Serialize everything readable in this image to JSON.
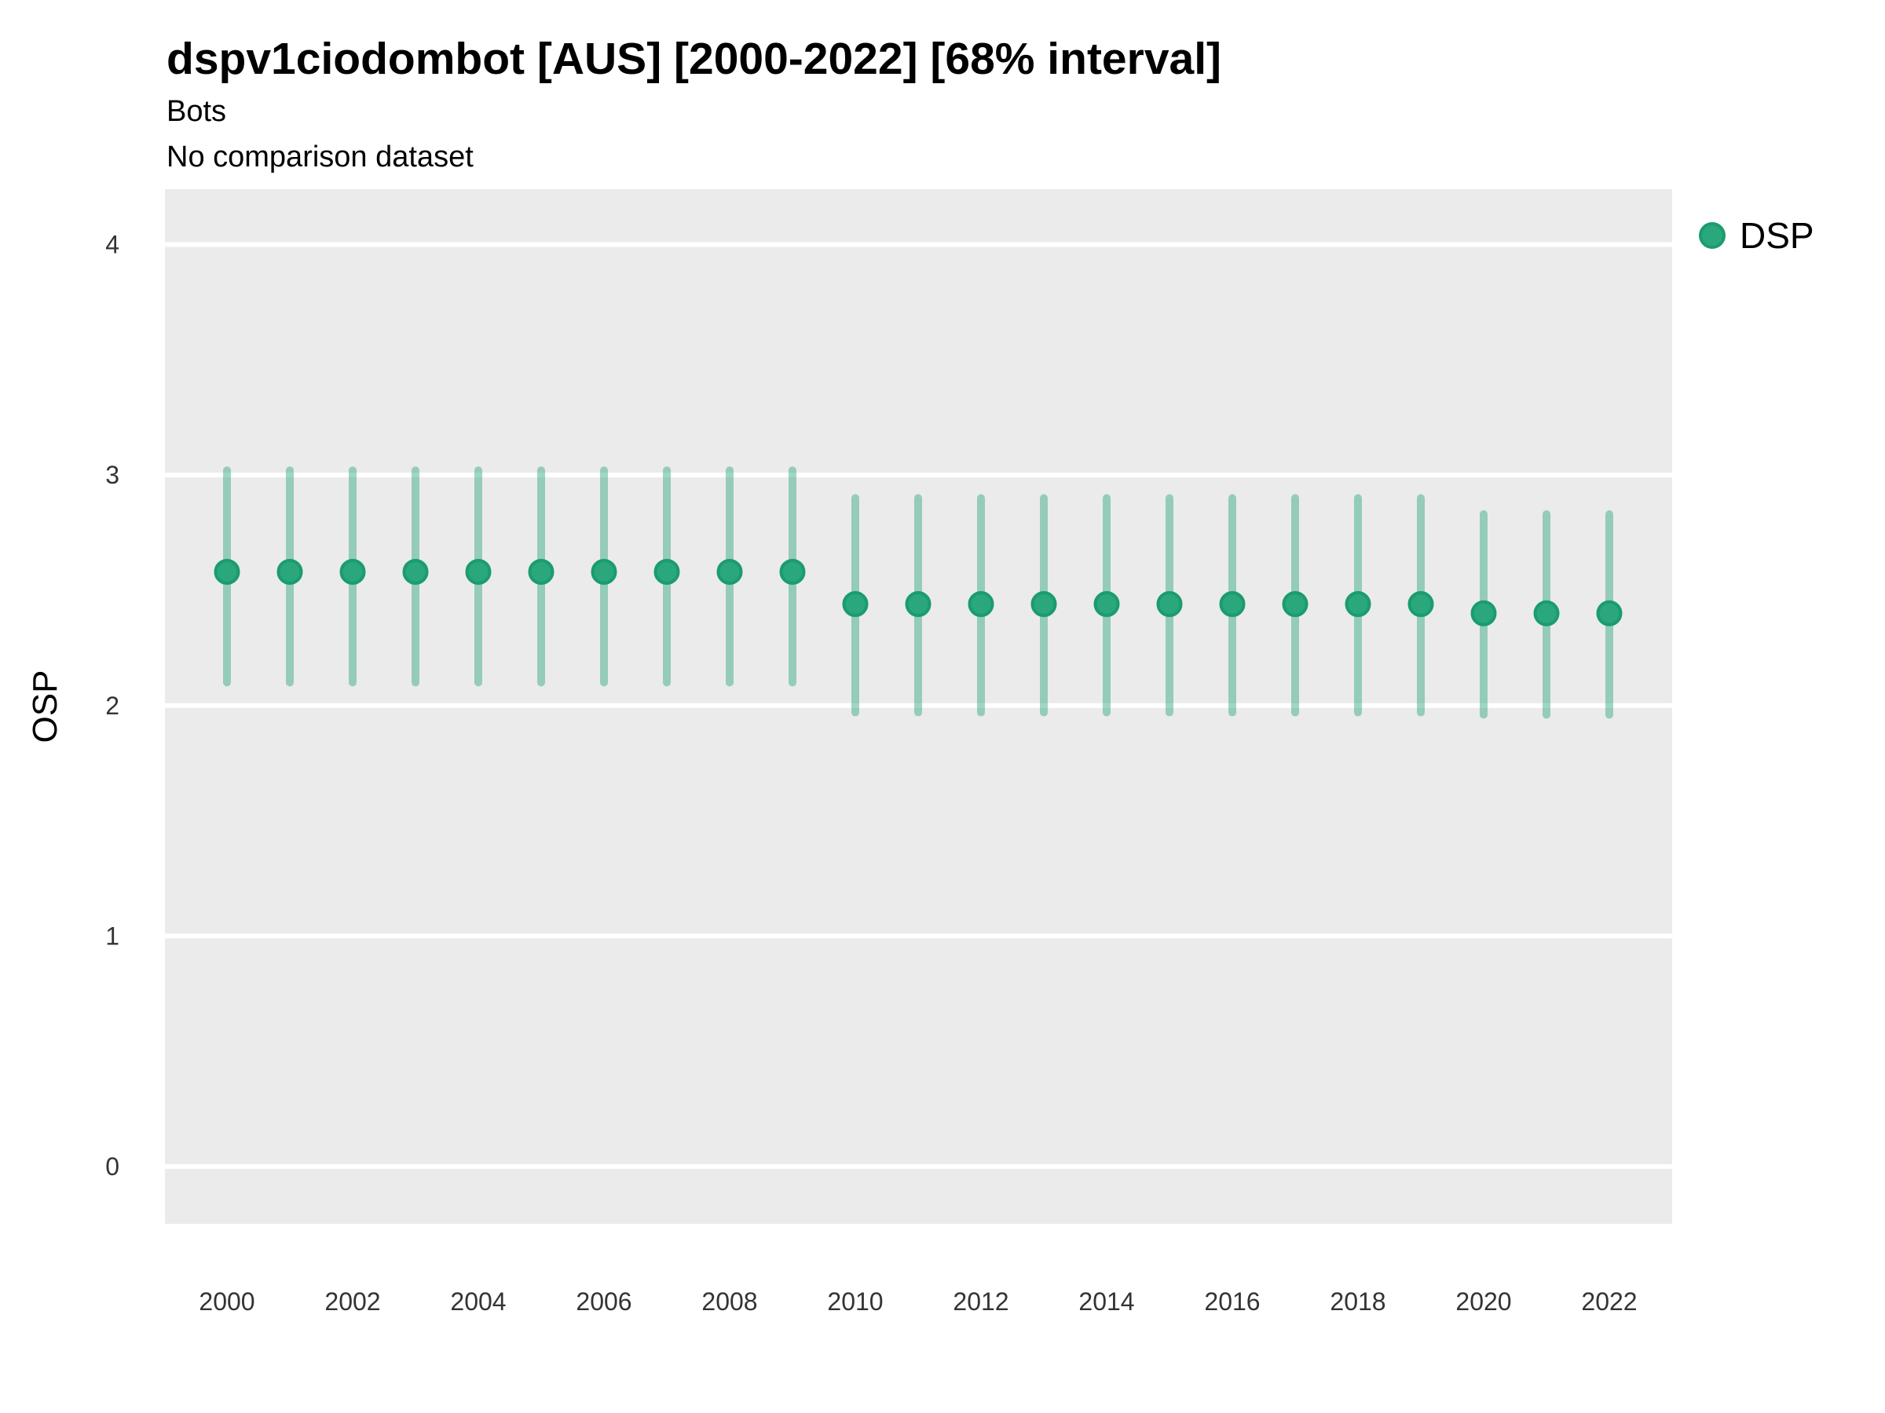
{
  "title": "dspv1ciodombot [AUS] [2000-2022] [68% interval]",
  "subtitle": "Bots",
  "comparison_note": "No comparison dataset",
  "legend": {
    "label": "DSP",
    "position": "right"
  },
  "colors": {
    "point_fill": "#2aa77d",
    "point_stroke": "#1b9c6c",
    "interval_line": "rgba(42,167,125,0.45)",
    "panel_bg": "#ebebeb",
    "gridline": "#ffffff",
    "tick_text": "#333333",
    "text": "#000000"
  },
  "chart_data": {
    "type": "scatter",
    "subtype": "pointrange",
    "title": "dspv1ciodombot [AUS] [2000-2022] [68% interval]",
    "subtitle": "Bots",
    "note": "No comparison dataset",
    "xlabel": "",
    "ylabel": "OSP",
    "interval_level": "68%",
    "grid": "major horizontal white lines on gray panel",
    "legend_position": "right",
    "x": [
      2000,
      2001,
      2002,
      2003,
      2004,
      2005,
      2006,
      2007,
      2008,
      2009,
      2010,
      2011,
      2012,
      2013,
      2014,
      2015,
      2016,
      2017,
      2018,
      2019,
      2020,
      2021,
      2022
    ],
    "series": [
      {
        "name": "DSP",
        "values": [
          2.58,
          2.58,
          2.58,
          2.58,
          2.58,
          2.58,
          2.58,
          2.58,
          2.58,
          2.58,
          2.44,
          2.44,
          2.44,
          2.44,
          2.44,
          2.44,
          2.44,
          2.44,
          2.44,
          2.44,
          2.4,
          2.4,
          2.4
        ],
        "interval_low": [
          2.1,
          2.1,
          2.1,
          2.1,
          2.1,
          2.1,
          2.1,
          2.1,
          2.1,
          2.1,
          1.97,
          1.97,
          1.97,
          1.97,
          1.97,
          1.97,
          1.97,
          1.97,
          1.97,
          1.97,
          1.96,
          1.96,
          1.96
        ],
        "interval_high": [
          3.02,
          3.02,
          3.02,
          3.02,
          3.02,
          3.02,
          3.02,
          3.02,
          3.02,
          3.02,
          2.9,
          2.9,
          2.9,
          2.9,
          2.9,
          2.9,
          2.9,
          2.9,
          2.9,
          2.9,
          2.83,
          2.83,
          2.83
        ]
      }
    ],
    "x_ticks": [
      2000,
      2002,
      2004,
      2006,
      2008,
      2010,
      2012,
      2014,
      2016,
      2018,
      2020,
      2022
    ],
    "y_ticks": [
      0,
      1,
      2,
      3,
      4
    ],
    "ylim": [
      -0.25,
      4.24
    ]
  }
}
